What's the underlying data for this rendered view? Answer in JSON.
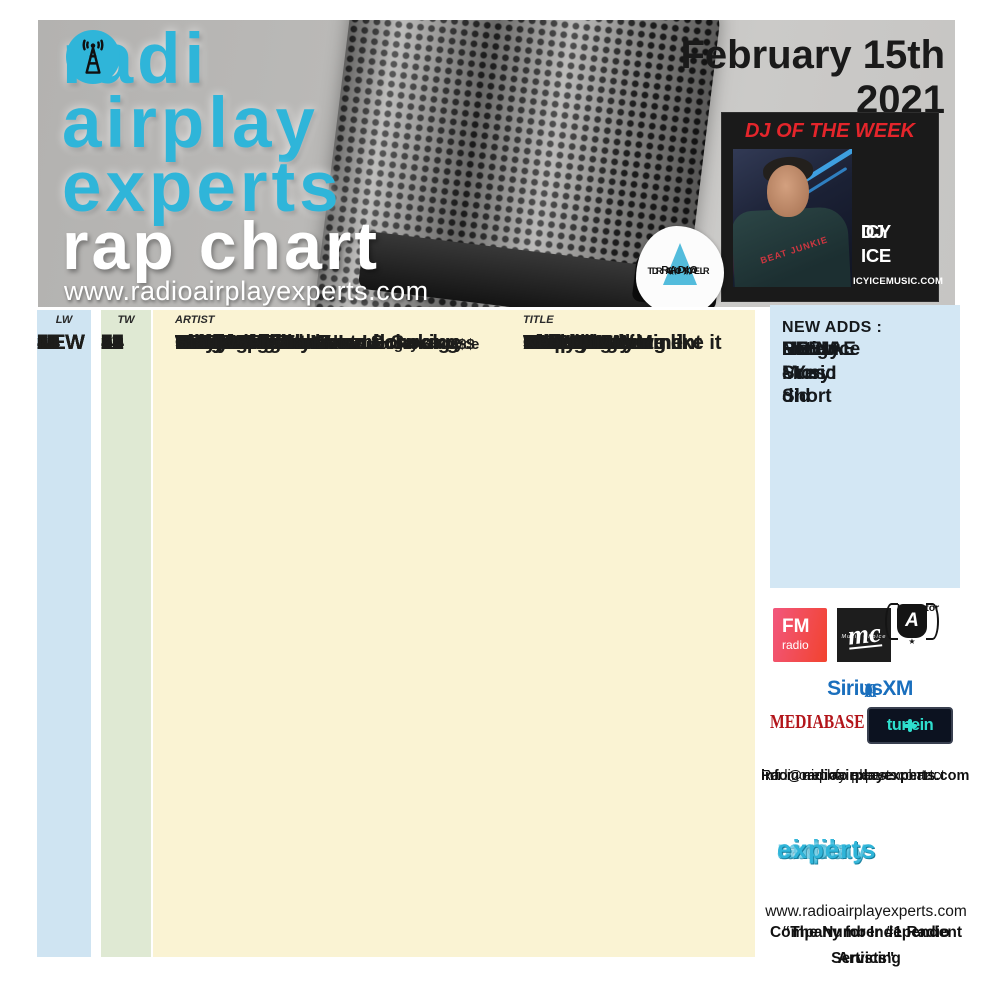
{
  "header": {
    "logo": {
      "radio_prefix": "radi",
      "word2": "airplay",
      "word3": "experts"
    },
    "chart_name": "rap chart",
    "website": "www.radioairplayexperts.com",
    "date_line1": "February 15th",
    "date_line2": "2021",
    "dj": {
      "label": "DJ OF THE WEEK",
      "name_line1": "DJ",
      "name_line2": "ICY ICE",
      "site": "ICYICEMUSIC.COM",
      "shirt_text": "BEAT JUNKIE"
    },
    "drt": {
      "waves": "((( • )))",
      "line1": "DIGITAL",
      "line2": "RADIO",
      "line3": "TRACKER"
    }
  },
  "table": {
    "headers": {
      "lw": "LW",
      "tw": "TW",
      "artist": "ARTIST",
      "title": "TITLE"
    },
    "rows": [
      {
        "lw": "2",
        "tw": "1",
        "artist": "Ynm Bandana Feat Lil Savage",
        "note": "",
        "title": "Strike back"
      },
      {
        "lw": "3",
        "tw": "2",
        "artist": "Haviah Mighty",
        "note": "",
        "title": "Atlantic"
      },
      {
        "lw": "4",
        "tw": "3",
        "artist": "Rock Mecca",
        "note": "ft. Ruste Juxx",
        "title": "Man - O - War"
      },
      {
        "lw": "6",
        "tw": "4",
        "artist": "M-Deuce Feat Wanz",
        "note": "",
        "title": "Unite"
      },
      {
        "lw": "8",
        "tw": "5",
        "artist": "Caelum",
        "note": "",
        "title": "Change My Mind"
      },
      {
        "lw": "7",
        "tw": "6",
        "artist": "YEL",
        "note": "",
        "title": "3 Street"
      },
      {
        "lw": "15",
        "tw": "7",
        "artist": "Witty",
        "note": "",
        "title": "Co Pilot"
      },
      {
        "lw": "9",
        "tw": "8",
        "artist": "Gata Delgardo & Iambornking",
        "note": "",
        "title": "Federal Indictment"
      },
      {
        "lw": "11",
        "tw": "9",
        "artist": "Fe Lie The God",
        "note": "",
        "title": "OMGOD"
      },
      {
        "lw": "13",
        "tw": "10",
        "artist": "PS The Rebels",
        "note": "",
        "title": "Bumaye"
      },
      {
        "lw": "12",
        "tw": "11",
        "artist": "Playa Swade",
        "note": "",
        "title": "Price Tag"
      },
      {
        "lw": "14",
        "tw": "12",
        "artist": "Machinedrum",
        "note": "",
        "title": "Star"
      },
      {
        "lw": "16",
        "tw": "13",
        "artist": "Healy",
        "note": "",
        "title": "Nikes On"
      },
      {
        "lw": "NEW",
        "tw": "14",
        "artist": "Leaders of The New School",
        "note": "",
        "title": "This is how we like it"
      },
      {
        "lw": "NEW",
        "tw": "15",
        "artist": "Tobe Nwigwe",
        "note": "f/Black Thought & Royce",
        "title": "Da 5’9"
      },
      {
        "lw": "17",
        "tw": "16",
        "artist": "Wax Tailor",
        "note": "",
        "title": "Keep It Moving"
      },
      {
        "lw": "18",
        "tw": "17",
        "artist": "Cosima",
        "note": "",
        "title": "Philly"
      },
      {
        "lw": "19",
        "tw": "18",
        "artist": "K.A.A.N.",
        "note": "",
        "title": "Welcome"
      },
      {
        "lw": "20",
        "tw": "19",
        "artist": "The Mood Doctors",
        "note": "",
        "title": "Never"
      },
      {
        "lw": "21",
        "tw": "20",
        "artist": "Mufasaa Solo Nova",
        "note": "",
        "title": "Have Mercy"
      },
      {
        "lw": "22",
        "tw": "21",
        "artist": "Wheelup",
        "note": "",
        "title": "Good Love"
      },
      {
        "lw": "23",
        "tw": "22",
        "artist": "Tongue",
        "note": "",
        "title": "Don’t Matter"
      },
      {
        "lw": "24",
        "tw": "23",
        "artist": "Will Mac",
        "note": "",
        "title": "Last Laugh"
      },
      {
        "lw": "NEW",
        "tw": "24",
        "artist": "E Dawg",
        "note": "",
        "title": "Clap"
      },
      {
        "lw": "NEW",
        "tw": "25",
        "artist": "Statik Selektah",
        "note": "ft. Nas & Joey Bada$$",
        "title": "Keep It Moving"
      }
    ]
  },
  "sidebar": {
    "new_adds_label": "NEW ADDS :",
    "new_adds": [
      {
        "lines": [
          "RO’NAE - Yes I did"
        ]
      },
      {
        "lines": [
          "HEEM",
          "Long Story Short"
        ]
      },
      {
        "lines": [
          "Mauzy Music",
          "Patience"
        ]
      }
    ],
    "logos": {
      "fm": {
        "line1": "FM",
        "line2": "radio"
      },
      "mc": {
        "script": "mc",
        "sub": "Music Choice"
      },
      "inavator": {
        "label": "InAvator",
        "letter": "A",
        "star": "★"
      },
      "siriusxm": {
        "arcs_left": "(((",
        "name": "SiriusXM",
        "arcs_right": ")))"
      },
      "mediabase": {
        "label": "MEDIABASE"
      },
      "tunein": {
        "label": "tunein"
      }
    },
    "contact_lines": [
      "For more info please contact :",
      "Radio airplay experts chart:",
      "info@radioairplayexperts.com"
    ],
    "footer_logo_lines": [
      "radio",
      "airplay",
      "experts"
    ],
    "footer_site": "www.radioairplayexperts.com",
    "quote_lines": [
      "“The Number #1 Radio Servicing",
      "Company for Independent Artists\""
    ]
  },
  "colors": {
    "accent_teal": "#2fb5d9",
    "red": "#e4252b",
    "lw_column_bg": "#cfe4f2",
    "tw_column_bg": "#dfe9d3",
    "table_bg": "#faf3d3",
    "sidebar_bg": "#d3e7f4",
    "siriusxm_blue": "#1a6fbd",
    "mediabase_red": "#b3151a",
    "tunein_teal": "#2edfce",
    "fm_gradient": [
      "#f2577d",
      "#f2432e"
    ]
  }
}
